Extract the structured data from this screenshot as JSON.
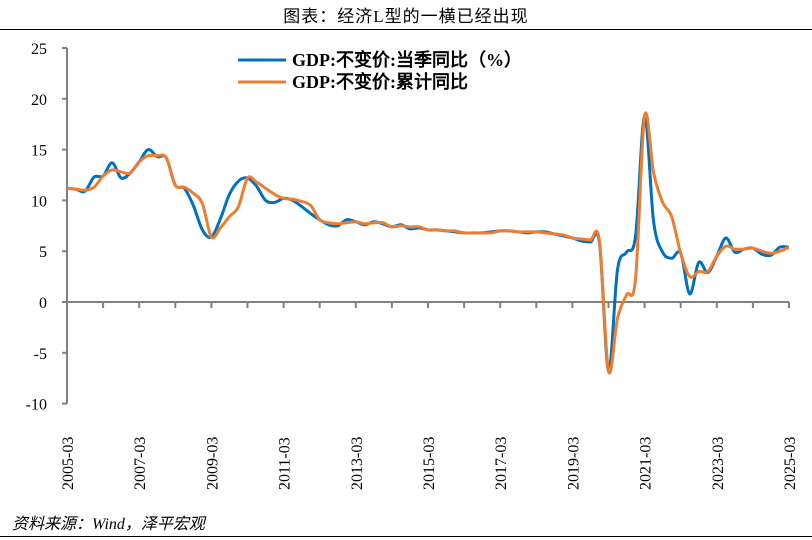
{
  "title": "图表：经济L型的一横已经出现",
  "source": "资料来源：Wind，泽平宏观",
  "chart_data": {
    "type": "line",
    "title": "",
    "xlabel": "",
    "ylabel": "",
    "ylim": [
      -10,
      25
    ],
    "yticks": [
      "25",
      "20",
      "15",
      "10",
      "5",
      "0",
      "-5",
      "-10"
    ],
    "xtick_labels": [
      "2005-03",
      "2007-03",
      "2009-03",
      "2011-03",
      "2013-03",
      "2015-03",
      "2017-03",
      "2019-03",
      "2021-03",
      "2023-03",
      "2025-03"
    ],
    "x_start": "2005-03",
    "x_end": "2025-03",
    "frequency": "quarterly",
    "grid": false,
    "legend": "top-center",
    "series": [
      {
        "name": "GDP:不变价:当季同比（%）",
        "color": "#0070C0",
        "values": [
          11.2,
          11.1,
          10.9,
          12.3,
          12.4,
          13.7,
          12.2,
          12.7,
          13.8,
          15.0,
          14.3,
          14.2,
          11.5,
          11.2,
          9.5,
          7.1,
          6.4,
          8.2,
          10.6,
          11.9,
          12.2,
          11.4,
          10.0,
          9.8,
          10.2,
          10.0,
          9.4,
          8.7,
          8.1,
          7.6,
          7.5,
          8.1,
          7.9,
          7.6,
          7.9,
          7.7,
          7.4,
          7.6,
          7.2,
          7.3,
          7.1,
          7.1,
          7.0,
          6.9,
          6.8,
          6.8,
          6.8,
          6.9,
          7.0,
          7.0,
          6.9,
          6.8,
          6.9,
          6.9,
          6.7,
          6.5,
          6.3,
          6.0,
          5.9,
          5.8,
          -6.8,
          3.2,
          4.9,
          6.5,
          18.3,
          7.9,
          4.9,
          4.3,
          4.8,
          0.8,
          3.9,
          2.9,
          4.5,
          6.3,
          4.9,
          5.2,
          5.3,
          4.7,
          4.6,
          5.4,
          5.4
        ]
      },
      {
        "name": "GDP:不变价:累计同比",
        "color": "#ED7D31",
        "values": [
          11.2,
          11.1,
          11.0,
          11.3,
          12.4,
          13.0,
          12.8,
          12.7,
          13.8,
          14.4,
          14.4,
          14.2,
          11.5,
          11.3,
          10.7,
          9.7,
          6.4,
          7.3,
          8.4,
          9.4,
          12.2,
          11.8,
          11.2,
          10.6,
          10.2,
          10.1,
          9.9,
          9.5,
          8.1,
          7.8,
          7.7,
          7.8,
          7.9,
          7.7,
          7.8,
          7.8,
          7.4,
          7.5,
          7.4,
          7.4,
          7.1,
          7.1,
          7.0,
          7.0,
          6.8,
          6.8,
          6.8,
          6.8,
          7.0,
          7.0,
          6.9,
          6.9,
          6.9,
          6.8,
          6.7,
          6.6,
          6.3,
          6.2,
          6.1,
          6.0,
          -6.8,
          -1.6,
          0.7,
          2.3,
          18.3,
          12.7,
          9.8,
          8.4,
          4.8,
          2.5,
          3.0,
          3.0,
          4.5,
          5.5,
          5.2,
          5.2,
          5.3,
          5.0,
          4.8,
          5.0,
          5.4
        ]
      }
    ]
  }
}
